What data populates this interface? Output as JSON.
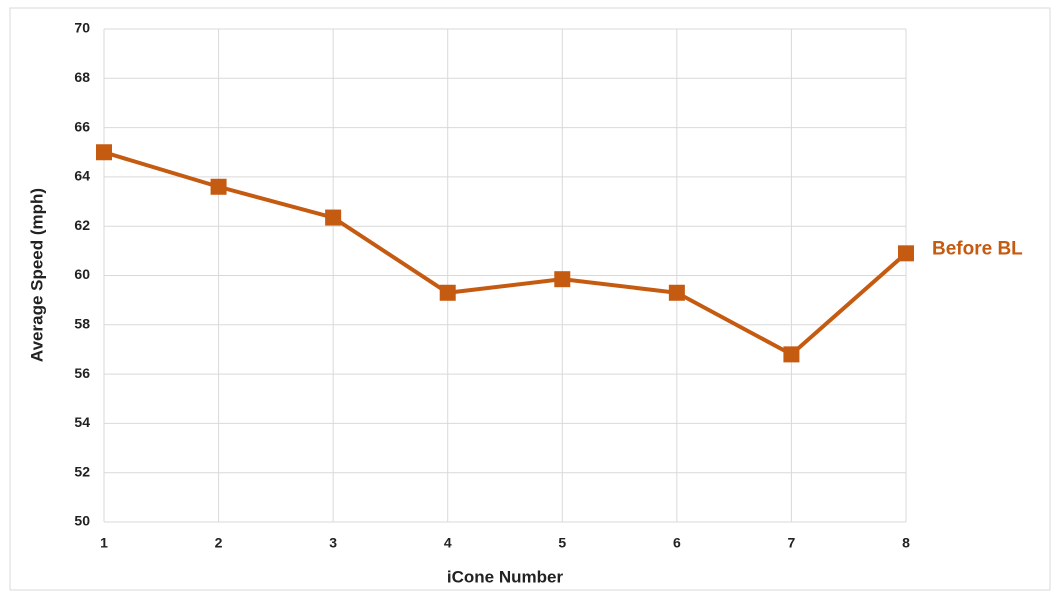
{
  "chart_data": {
    "type": "line",
    "x_label": "iCone Number",
    "y_label": "Average Speed (mph)",
    "x": [
      1,
      2,
      3,
      4,
      5,
      6,
      7,
      8
    ],
    "series": [
      {
        "name": "Before BL",
        "color": "#c55a11",
        "values": [
          65,
          63.6,
          62.35,
          59.3,
          59.85,
          59.3,
          56.8,
          60.9
        ]
      }
    ],
    "xlim": [
      1,
      8
    ],
    "xticks": [
      1,
      2,
      3,
      4,
      5,
      6,
      7,
      8
    ],
    "ylim": [
      50,
      70
    ],
    "yticks": [
      50,
      52,
      54,
      56,
      58,
      60,
      62,
      64,
      66,
      68,
      70
    ],
    "grid": true
  }
}
